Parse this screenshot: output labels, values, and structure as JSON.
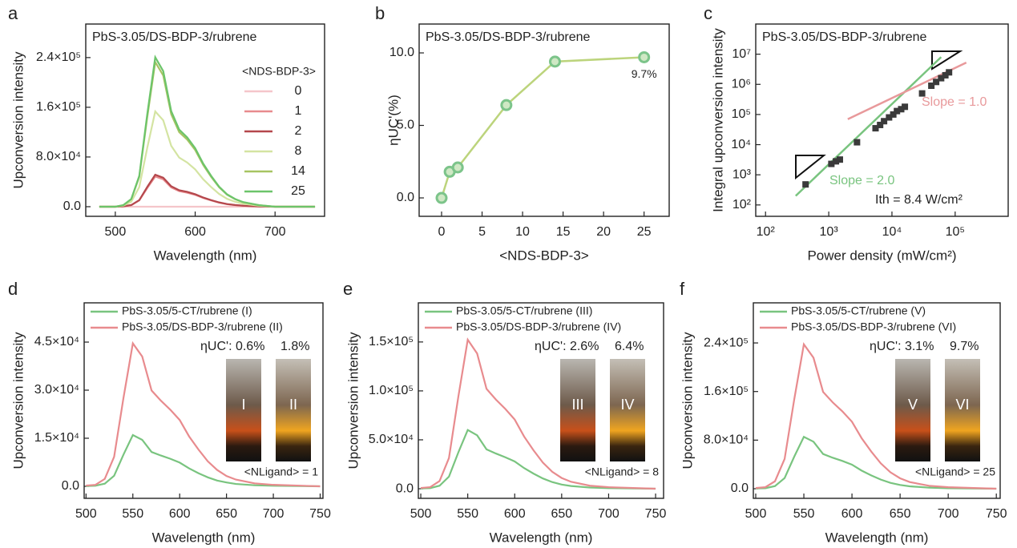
{
  "chart_data": [
    {
      "panel": "a",
      "type": "line",
      "title": "PbS-3.05/DS-BDP-3/rubrene",
      "x_label": "Wavelength (nm)",
      "y_label": "Upconversion intensity",
      "legend_title": "<NDS-BDP-3>",
      "x": [
        480,
        500,
        510,
        520,
        530,
        540,
        550,
        560,
        570,
        580,
        590,
        600,
        610,
        620,
        630,
        640,
        650,
        660,
        680,
        700,
        750
      ],
      "series": [
        {
          "name": "0",
          "color": "#f5c6ca",
          "values": [
            0,
            0,
            0,
            0,
            0,
            0,
            0,
            0,
            0,
            0,
            0,
            0,
            0,
            0,
            0,
            0,
            0,
            0,
            0,
            0,
            0
          ]
        },
        {
          "name": "1",
          "color": "#e88b8e",
          "values": [
            0,
            0,
            500,
            2500,
            10000,
            30000,
            48500,
            44000,
            31000,
            25000,
            22500,
            19000,
            14000,
            10000,
            6500,
            4000,
            2500,
            1500,
            500,
            0,
            0
          ]
        },
        {
          "name": "2",
          "color": "#b4474c",
          "values": [
            0,
            0,
            500,
            2700,
            10600,
            31800,
            51400,
            46600,
            32900,
            26500,
            23900,
            20100,
            14800,
            10600,
            6900,
            4200,
            2700,
            1600,
            500,
            0,
            0
          ]
        },
        {
          "name": "8",
          "color": "#d4e4a2",
          "values": [
            0,
            0,
            1600,
            7900,
            31600,
            94800,
            153300,
            139000,
            98000,
            79000,
            71100,
            60000,
            44200,
            31600,
            20500,
            12600,
            7900,
            4700,
            1600,
            0,
            0
          ]
        },
        {
          "name": "14",
          "color": "#a7c462",
          "values": [
            0,
            0,
            2400,
            12000,
            48000,
            144000,
            232800,
            211200,
            148800,
            120000,
            108000,
            91200,
            67200,
            48000,
            31200,
            19200,
            12000,
            7200,
            2400,
            0,
            0
          ]
        },
        {
          "name": "25",
          "color": "#6cc46a",
          "values": [
            0,
            0,
            2500,
            12400,
            49600,
            148800,
            240600,
            218200,
            153800,
            124000,
            111600,
            94200,
            69400,
            49600,
            32200,
            19800,
            12400,
            7400,
            2500,
            0,
            0
          ]
        }
      ],
      "xlim": [
        463,
        762
      ],
      "xticks": [
        500,
        600,
        700
      ],
      "ylim": [
        -15500,
        294000
      ],
      "yticks": [
        {
          "value": 0,
          "label": "0.0"
        },
        {
          "value": 80000,
          "label": "8.0×10⁴"
        },
        {
          "value": 160000,
          "label": "1.6×10⁵"
        },
        {
          "value": 240000,
          "label": "2.4×10⁵"
        }
      ]
    },
    {
      "panel": "b",
      "type": "line",
      "title": "PbS-3.05/DS-BDP-3/rubrene",
      "x_label": "<NDS-BDP-3>",
      "y_label": "ηUC'(%)",
      "x": [
        0,
        1,
        2,
        8,
        14,
        25
      ],
      "values": [
        0,
        1.8,
        2.1,
        6.4,
        9.4,
        9.7
      ],
      "value_labels": [
        null,
        null,
        null,
        null,
        null,
        "9.7%"
      ],
      "color": "#bcd47c",
      "marker_color": "#7cc48a",
      "markers": true,
      "xlim": [
        -2.77,
        28.1
      ],
      "xticks": [
        0,
        5,
        10,
        15,
        20,
        25
      ],
      "ylim": [
        -1.27,
        11.99
      ],
      "yticks": [
        {
          "value": 0,
          "label": "0.0"
        },
        {
          "value": 5,
          "label": "5.0"
        },
        {
          "value": 10,
          "label": "10.0"
        }
      ]
    },
    {
      "panel": "c",
      "type": "scatter",
      "title": "PbS-3.05/DS-BDP-3/rubrene",
      "x_label": "Power density (mW/cm²)",
      "y_label": "Integral upconversion intensity",
      "xlog": true,
      "ylog": true,
      "color": "#3a3a3a",
      "x": [
        430,
        1100,
        1300,
        1500,
        2800,
        5500,
        6500,
        7500,
        9000,
        10500,
        12000,
        14000,
        16000,
        30000,
        42000,
        50000,
        60000,
        70000,
        80000
      ],
      "values": [
        480,
        2300,
        2800,
        3200,
        12000,
        35000,
        45000,
        60000,
        80000,
        100000,
        130000,
        150000,
        180000,
        500000,
        900000,
        1200000,
        1600000,
        2000000,
        2500000
      ],
      "fits": [
        {
          "label": "Slope = 2.0",
          "color": "#79c47f",
          "x": [
            300,
            60000
          ],
          "y": [
            200,
            8000000
          ]
        },
        {
          "label": "Slope = 1.0",
          "color": "#e8999b",
          "x": [
            2000,
            150000
          ],
          "y": [
            70000,
            5250000
          ]
        }
      ],
      "annotations": [
        "Ith = 8.4 W/cm²"
      ],
      "xlim": [
        70,
        690000
      ],
      "xticks": [
        {
          "value": 100,
          "label": "10²"
        },
        {
          "value": 1000,
          "label": "10³"
        },
        {
          "value": 10000,
          "label": "10⁴"
        },
        {
          "value": 100000,
          "label": "10⁵"
        }
      ],
      "ylim": [
        42,
        100000000
      ],
      "yticks": [
        {
          "value": 100,
          "label": "10²"
        },
        {
          "value": 1000,
          "label": "10³"
        },
        {
          "value": 10000,
          "label": "10⁴"
        },
        {
          "value": 100000,
          "label": "10⁵"
        },
        {
          "value": 1000000,
          "label": "10⁶"
        },
        {
          "value": 10000000,
          "label": "10⁷"
        }
      ]
    },
    {
      "panel": "d",
      "type": "line",
      "x_label": "Wavelength (nm)",
      "y_label": "Upconversion intensity",
      "x": [
        500,
        510,
        520,
        530,
        540,
        550,
        560,
        570,
        580,
        590,
        600,
        610,
        620,
        630,
        640,
        650,
        660,
        680,
        700,
        750
      ],
      "series": [
        {
          "name": "PbS-3.05/5-CT/rubrene (I)",
          "color": "#79c47f",
          "values": [
            80,
            170,
            830,
            3300,
            9900,
            16000,
            14500,
            10700,
            9600,
            8600,
            7400,
            5600,
            4100,
            2800,
            1800,
            1200,
            740,
            330,
            170,
            0
          ]
        },
        {
          "name": "PbS-3.05/DS-BDP-3/rubrene (II)",
          "color": "#e88b8e",
          "values": [
            230,
            460,
            2300,
            9200,
            27600,
            44600,
            40500,
            29900,
            26700,
            23900,
            20700,
            15600,
            11500,
            7800,
            5100,
            3200,
            2100,
            920,
            460,
            0
          ]
        }
      ],
      "annotations": [
        "ηUC': 0.6%",
        "1.8%",
        "<NLigand> = 1"
      ],
      "vials": [
        "I",
        "II"
      ],
      "xlim": [
        498,
        753
      ],
      "xticks": [
        500,
        550,
        600,
        650,
        700,
        750
      ],
      "ylim": [
        -3750,
        57250
      ],
      "yticks": [
        {
          "value": 0,
          "label": "0.0"
        },
        {
          "value": 15000,
          "label": "1.5×10⁴"
        },
        {
          "value": 30000,
          "label": "3.0×10⁴"
        },
        {
          "value": 45000,
          "label": "4.5×10⁴"
        }
      ]
    },
    {
      "panel": "e",
      "type": "line",
      "x_label": "Wavelength (nm)",
      "y_label": "Upconversion intensity",
      "x": [
        500,
        510,
        520,
        530,
        540,
        550,
        560,
        570,
        580,
        590,
        600,
        610,
        620,
        630,
        640,
        650,
        660,
        680,
        700,
        750
      ],
      "series": [
        {
          "name": "PbS-3.05/5-CT/rubrene (III)",
          "color": "#79c47f",
          "values": [
            310,
            620,
            3100,
            12400,
            37200,
            60100,
            54600,
            40300,
            36000,
            32200,
            27900,
            21100,
            15500,
            10500,
            6800,
            4300,
            2800,
            1200,
            620,
            0
          ]
        },
        {
          "name": "PbS-3.05/DS-BDP-3/rubrene (IV)",
          "color": "#e88b8e",
          "values": [
            790,
            1600,
            7900,
            31400,
            94200,
            152300,
            138200,
            102100,
            91100,
            81600,
            70700,
            53400,
            39300,
            26700,
            17300,
            11000,
            7100,
            3100,
            1600,
            0
          ]
        }
      ],
      "annotations": [
        "ηUC': 2.6%",
        "6.4%",
        "<NLigand> = 8"
      ],
      "vials": [
        "III",
        "IV"
      ],
      "xlim": [
        497.4,
        758.5
      ],
      "xticks": [
        500,
        550,
        600,
        650,
        700,
        750
      ],
      "ylim": [
        -9800,
        190000
      ],
      "yticks": [
        {
          "value": 0,
          "label": "0.0"
        },
        {
          "value": 50000,
          "label": "5.0×10⁴"
        },
        {
          "value": 100000,
          "label": "1.0×10⁵"
        },
        {
          "value": 150000,
          "label": "1.5×10⁵"
        }
      ]
    },
    {
      "panel": "f",
      "type": "line",
      "x_label": "Wavelength (nm)",
      "y_label": "Upconversion intensity",
      "x": [
        500,
        510,
        520,
        530,
        540,
        550,
        560,
        570,
        580,
        590,
        600,
        610,
        620,
        630,
        640,
        650,
        660,
        680,
        700,
        750
      ],
      "series": [
        {
          "name": "PbS-3.05/5-CT/rubrene (V)",
          "color": "#79c47f",
          "values": [
            440,
            880,
            4400,
            17600,
            52800,
            85400,
            77400,
            57200,
            51000,
            45800,
            39600,
            29900,
            22000,
            15000,
            9700,
            6200,
            4000,
            1800,
            880,
            0
          ]
        },
        {
          "name": "PbS-3.05/DS-BDP-3/rubrene (VI)",
          "color": "#e88b8e",
          "values": [
            1200,
            2500,
            12300,
            49000,
            147000,
            237700,
            215600,
            159300,
            142100,
            127400,
            110300,
            83300,
            61300,
            41700,
            27000,
            17200,
            11000,
            4900,
            2500,
            0
          ]
        }
      ],
      "annotations": [
        "ηUC': 3.1%",
        "9.7%",
        "<NLigand> = 25"
      ],
      "vials": [
        "V",
        "VI"
      ],
      "xlim": [
        497.5,
        754
      ],
      "xticks": [
        500,
        550,
        600,
        650,
        700,
        750
      ],
      "ylim": [
        -15800,
        306000
      ],
      "yticks": [
        {
          "value": 0,
          "label": "0.0"
        },
        {
          "value": 80000,
          "label": "8.0×10⁴"
        },
        {
          "value": 160000,
          "label": "1.6×10⁵"
        },
        {
          "value": 240000,
          "label": "2.4×10⁵"
        }
      ]
    }
  ]
}
